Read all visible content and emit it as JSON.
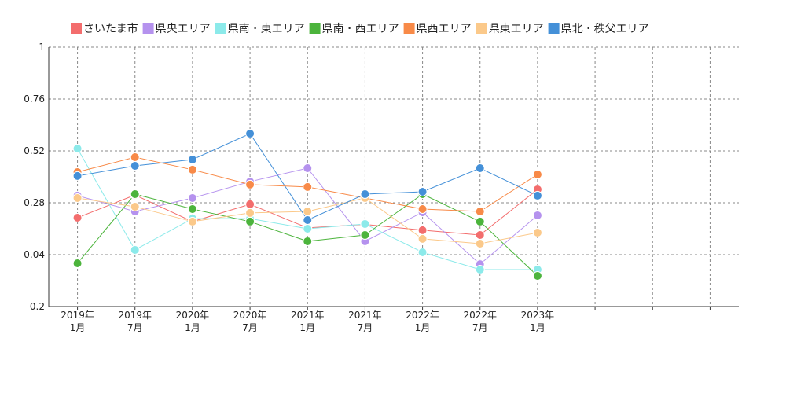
{
  "chart_data": {
    "type": "line",
    "categories": [
      "2019年\n1月",
      "2019年\n7月",
      "2020年\n1月",
      "2020年\n7月",
      "2021年\n1月",
      "2021年\n7月",
      "2022年\n1月",
      "2022年\n7月",
      "2023年\n1月",
      null,
      null,
      null
    ],
    "series": [
      {
        "name": "さいたま市",
        "color": "#f36d6d",
        "values": [
          0.211,
          0.316,
          0.193,
          0.273,
          0.164,
          0.18,
          0.153,
          0.131,
          0.342,
          null,
          null,
          null
        ]
      },
      {
        "name": "県央エリア",
        "color": "#b592ee",
        "values": [
          0.313,
          0.24,
          0.302,
          0.378,
          0.44,
          0.102,
          0.236,
          -0.004,
          0.222,
          null,
          null,
          null
        ]
      },
      {
        "name": "県南・東エリア",
        "color": "#8ceaea",
        "values": [
          0.531,
          0.062,
          0.207,
          0.207,
          0.16,
          0.182,
          0.051,
          -0.029,
          -0.029,
          null,
          null,
          null
        ]
      },
      {
        "name": "県南・西エリア",
        "color": "#4cb43c",
        "values": [
          0.0,
          0.32,
          0.251,
          0.193,
          0.102,
          0.131,
          0.32,
          0.193,
          -0.058,
          null,
          null,
          null
        ]
      },
      {
        "name": "県西エリア",
        "color": "#f88a48",
        "values": [
          0.422,
          0.491,
          0.433,
          0.364,
          0.353,
          0.302,
          0.251,
          0.24,
          0.411,
          null,
          null,
          null
        ]
      },
      {
        "name": "県東エリア",
        "color": "#fbc98a",
        "values": [
          0.302,
          0.262,
          0.193,
          0.233,
          0.24,
          0.302,
          0.113,
          0.091,
          0.142,
          null,
          null,
          null
        ]
      },
      {
        "name": "県北・秩父エリア",
        "color": "#4490d8",
        "values": [
          0.404,
          0.451,
          0.48,
          0.6,
          0.2,
          0.32,
          0.331,
          0.44,
          0.313,
          null,
          null,
          null
        ]
      }
    ],
    "ylim": [
      -0.2,
      1
    ],
    "yticks": [
      -0.2,
      0.04,
      0.28,
      0.52,
      0.76,
      1
    ],
    "grid": true
  }
}
